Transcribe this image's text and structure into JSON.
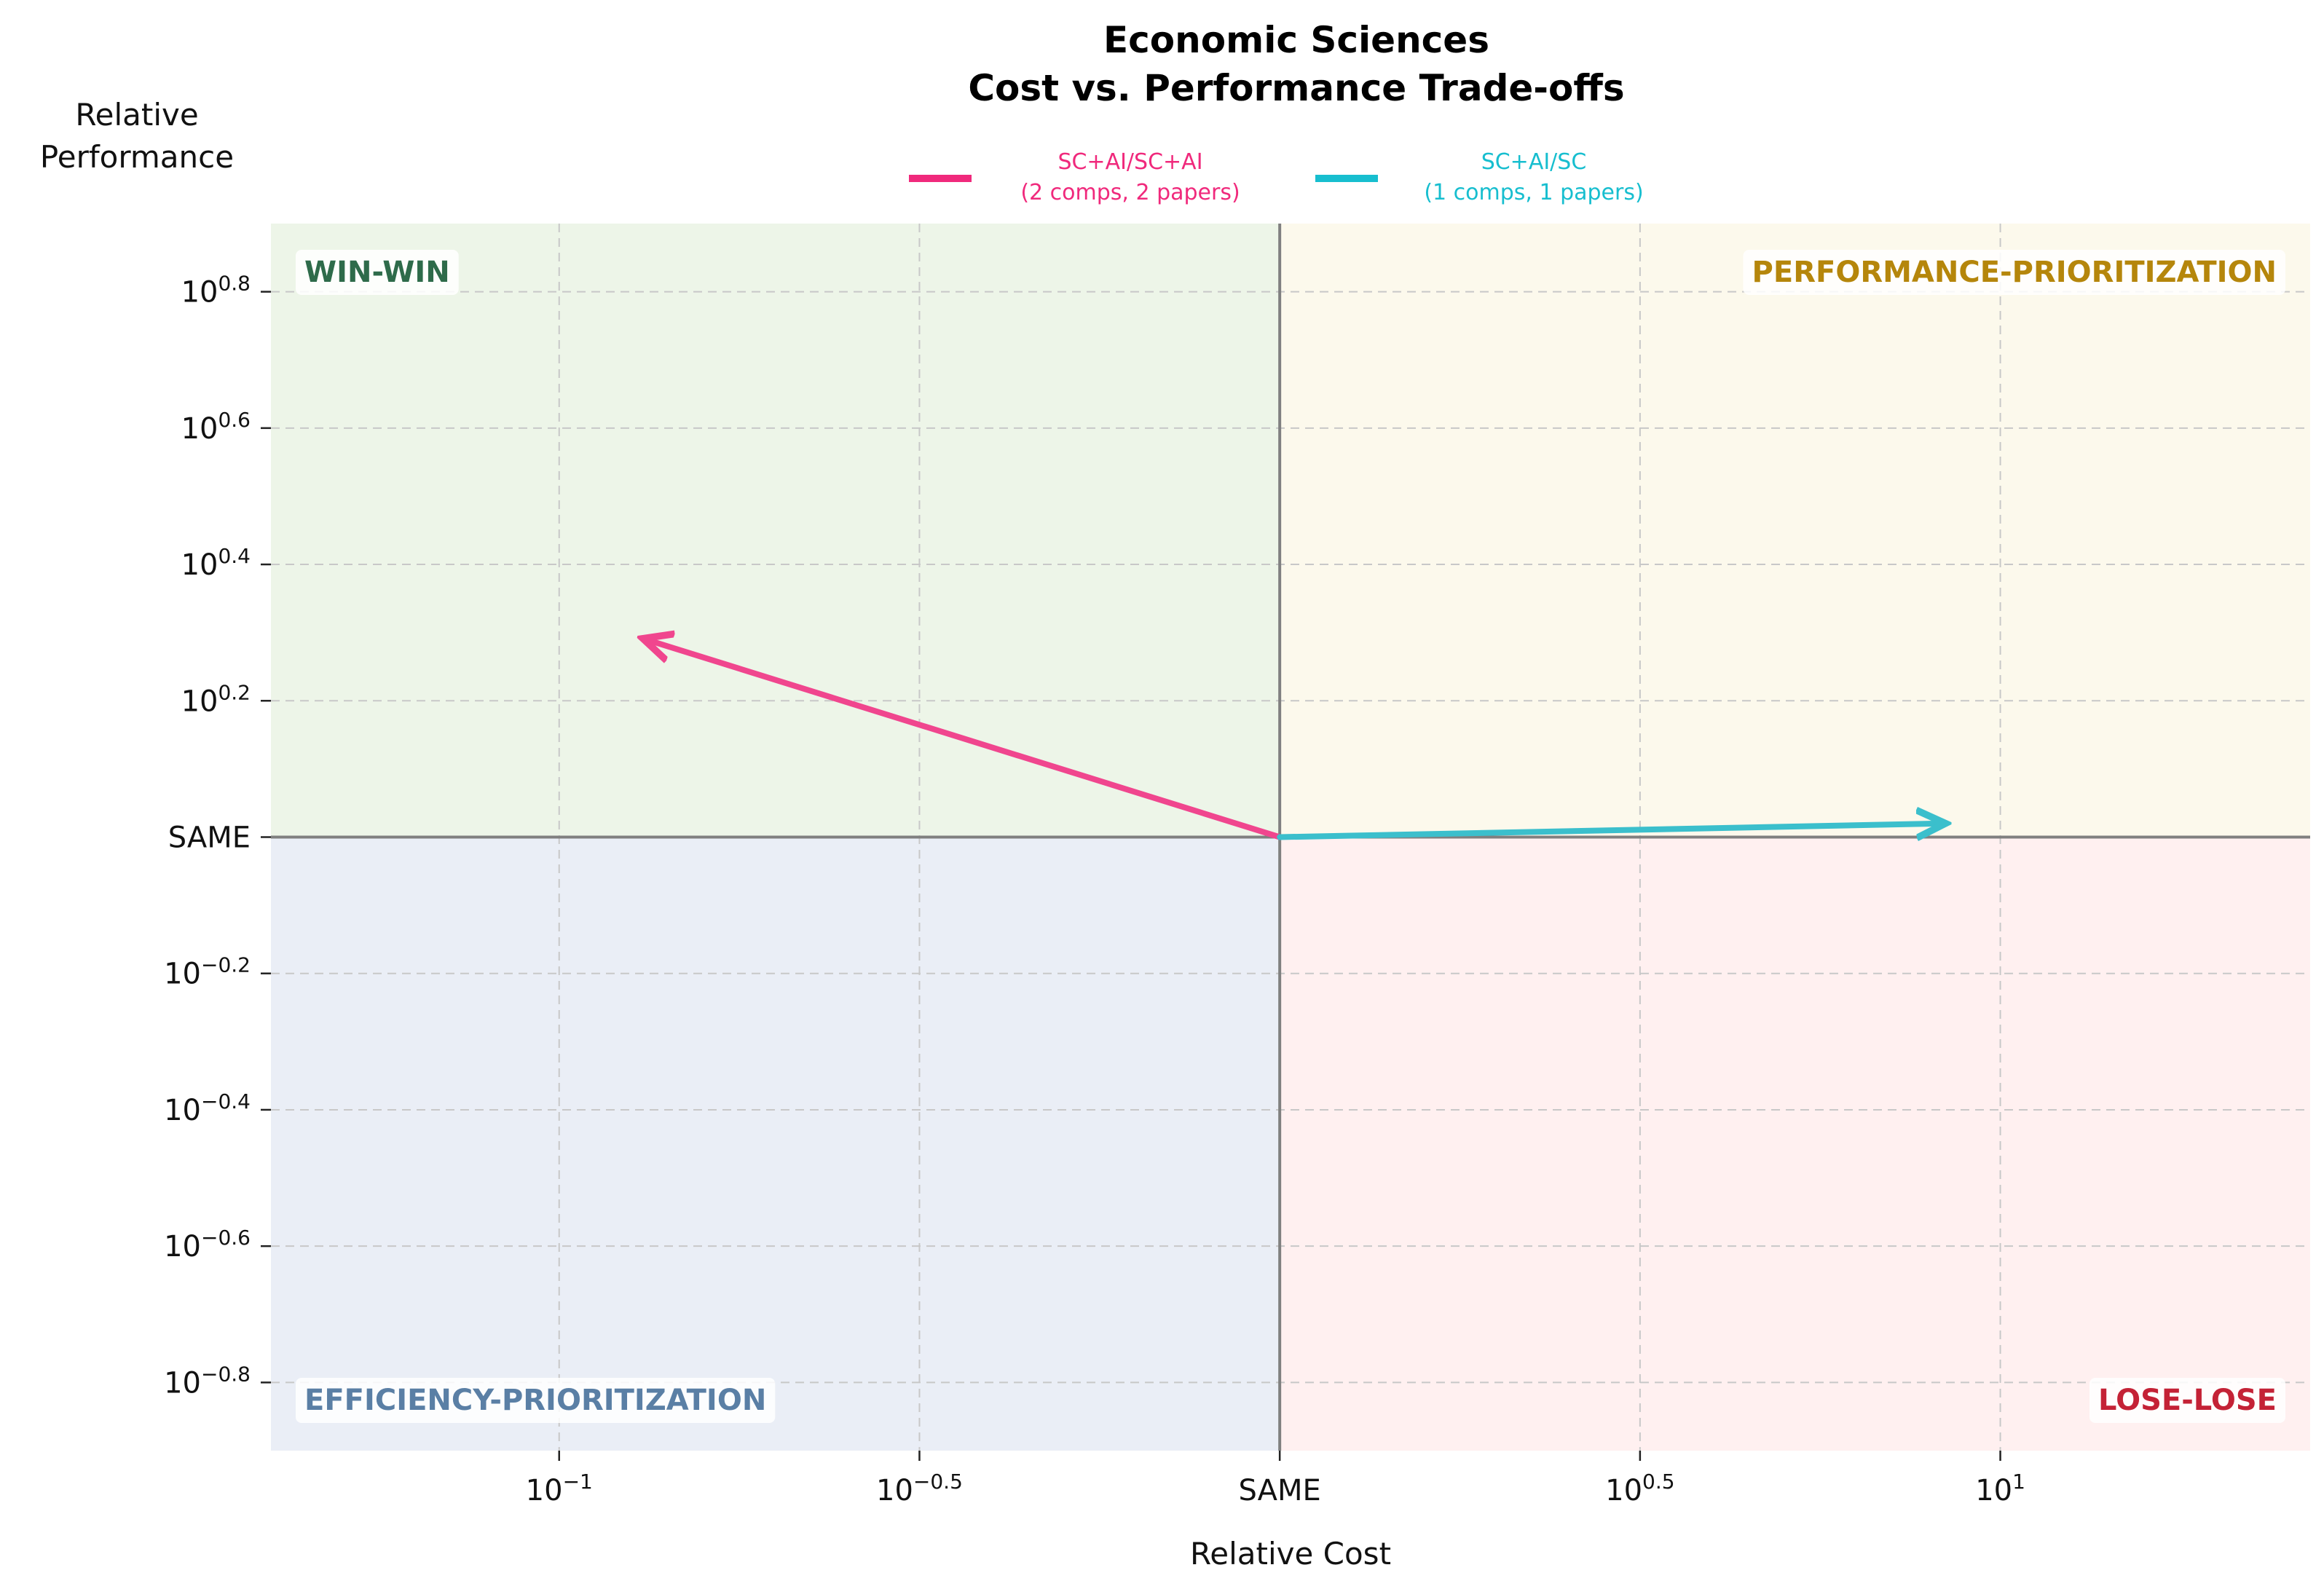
{
  "chart_data": {
    "type": "line",
    "title": [
      "Economic Sciences",
      "Cost vs. Performance Trade-offs"
    ],
    "xlabel": "Relative Cost",
    "ylabel": [
      "Relative",
      "Performance"
    ],
    "xscale": "log",
    "yscale": "log",
    "xlim_log10": [
      -1.4,
      1.43
    ],
    "ylim_log10": [
      -0.9,
      0.9
    ],
    "x_ticks": [
      {
        "exp": -1,
        "label": "10",
        "sup": "−1"
      },
      {
        "exp": -0.5,
        "label": "10",
        "sup": "−0.5"
      },
      {
        "exp": 0,
        "label": "SAME",
        "sup": ""
      },
      {
        "exp": 0.5,
        "label": "10",
        "sup": "0.5"
      },
      {
        "exp": 1,
        "label": "10",
        "sup": "1"
      }
    ],
    "y_ticks": [
      {
        "exp": 0.8,
        "label": "10",
        "sup": "0.8"
      },
      {
        "exp": 0.6,
        "label": "10",
        "sup": "0.6"
      },
      {
        "exp": 0.4,
        "label": "10",
        "sup": "0.4"
      },
      {
        "exp": 0.2,
        "label": "10",
        "sup": "0.2"
      },
      {
        "exp": 0,
        "label": "SAME",
        "sup": ""
      },
      {
        "exp": -0.2,
        "label": "10",
        "sup": "−0.2"
      },
      {
        "exp": -0.4,
        "label": "10",
        "sup": "−0.4"
      },
      {
        "exp": -0.6,
        "label": "10",
        "sup": "−0.6"
      },
      {
        "exp": -0.8,
        "label": "10",
        "sup": "−0.8"
      }
    ],
    "grid": true,
    "legend_position": "top-center",
    "quadrants": [
      {
        "name": "WIN-WIN",
        "position": "top-left",
        "color": "#2e6b4a",
        "fill": "#edf5e8"
      },
      {
        "name": "PERFORMANCE-PRIORITIZATION",
        "position": "top-right",
        "color": "#b5860b",
        "fill": "#fcf9ec"
      },
      {
        "name": "EFFICIENCY-PRIORITIZATION",
        "position": "bottom-left",
        "color": "#5a7fa5",
        "fill": "#eaeef6"
      },
      {
        "name": "LOSE-LOSE",
        "position": "bottom-right",
        "color": "#c42236",
        "fill": "#fff0f0"
      }
    ],
    "series": [
      {
        "name": "SC+AI/SC+AI",
        "detail": "(2 comps, 2 papers)",
        "color": "#f0468e",
        "legend_color": "#f0297c",
        "start_log10": [
          0,
          0
        ],
        "end_log10": [
          -0.88,
          0.29
        ]
      },
      {
        "name": "SC+AI/SC",
        "detail": "(1 comps, 1 papers)",
        "color": "#3bbfcc",
        "legend_color": "#17becf",
        "start_log10": [
          0,
          0
        ],
        "end_log10": [
          0.92,
          0.02
        ]
      }
    ]
  }
}
